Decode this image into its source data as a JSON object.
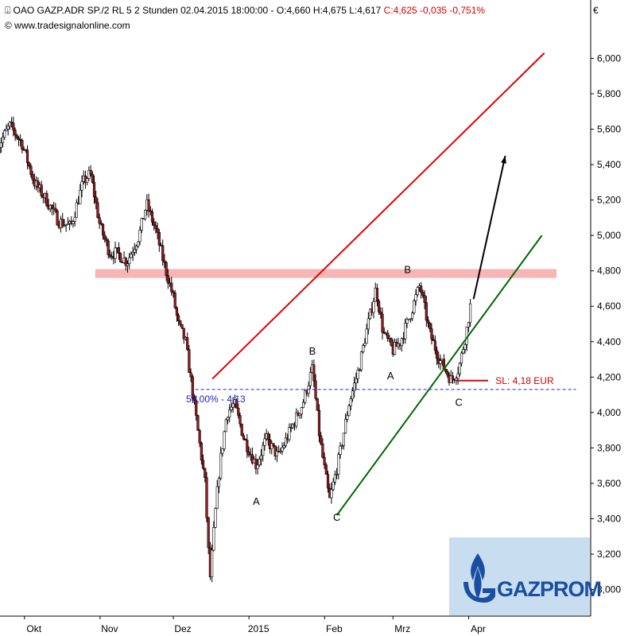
{
  "header": {
    "title": "OAO GAZP.ADR SP./2 RL 5 2 Stunden  02.04.2015 18:00:00 - O:4,660 H:4,675 L:4,617",
    "change": "C:4,625 -0,035 -0,751%",
    "copyright": "© www.tradesignalonline.com",
    "currency": "€"
  },
  "chart_data": {
    "type": "candlestick",
    "title": "OAO GAZP.ADR SP./2 RL 5 2 Stunden",
    "ylabel": "€",
    "ylim": [
      2.85,
      6.15
    ],
    "y_ticks": [
      "3,000",
      "3,200",
      "3,400",
      "3,600",
      "3,800",
      "4,000",
      "4,200",
      "4,400",
      "4,600",
      "4,800",
      "5,000",
      "5,200",
      "5,400",
      "5,600",
      "5,800",
      "6,000"
    ],
    "y_tick_values": [
      3.0,
      3.2,
      3.4,
      3.6,
      3.8,
      4.0,
      4.2,
      4.4,
      4.6,
      4.8,
      5.0,
      5.2,
      5.4,
      5.6,
      5.8,
      6.0
    ],
    "x_ticks": [
      "Okt",
      "Nov",
      "Dez",
      "2015",
      "Feb",
      "Mrz",
      "Apr"
    ],
    "x_tick_dates": [
      "2014-10-01",
      "2014-11-01",
      "2014-12-01",
      "2015-01-01",
      "2015-02-01",
      "2015-03-01",
      "2015-04-01"
    ],
    "last_bar": {
      "date": "2015-04-02 18:00",
      "open": 4.66,
      "high": 4.675,
      "low": 4.617,
      "close": 4.625,
      "change": -0.035,
      "change_pct": -0.751
    },
    "price_path": [
      [
        "2014-09-20",
        5.5
      ],
      [
        "2014-09-25",
        5.62
      ],
      [
        "2014-09-30",
        5.52
      ],
      [
        "2014-10-05",
        5.3
      ],
      [
        "2014-10-10",
        5.2
      ],
      [
        "2014-10-15",
        5.08
      ],
      [
        "2014-10-20",
        5.05
      ],
      [
        "2014-10-25",
        5.3
      ],
      [
        "2014-10-28",
        5.35
      ],
      [
        "2014-11-01",
        5.05
      ],
      [
        "2014-11-05",
        4.9
      ],
      [
        "2014-11-08",
        4.9
      ],
      [
        "2014-11-12",
        4.85
      ],
      [
        "2014-11-17",
        5.0
      ],
      [
        "2014-11-20",
        5.18
      ],
      [
        "2014-11-24",
        5.02
      ],
      [
        "2014-11-27",
        4.85
      ],
      [
        "2014-12-01",
        4.65
      ],
      [
        "2014-12-03",
        4.5
      ],
      [
        "2014-12-06",
        4.4
      ],
      [
        "2014-12-09",
        4.1
      ],
      [
        "2014-12-12",
        3.8
      ],
      [
        "2014-12-14",
        3.6
      ],
      [
        "2014-12-16",
        3.05
      ],
      [
        "2014-12-18",
        3.4
      ],
      [
        "2014-12-20",
        3.7
      ],
      [
        "2014-12-23",
        4.0
      ],
      [
        "2014-12-26",
        4.05
      ],
      [
        "2014-12-30",
        3.85
      ],
      [
        "2015-01-04",
        3.7
      ],
      [
        "2015-01-08",
        3.85
      ],
      [
        "2015-01-13",
        3.75
      ],
      [
        "2015-01-18",
        3.9
      ],
      [
        "2015-01-23",
        4.05
      ],
      [
        "2015-01-27",
        4.25
      ],
      [
        "2015-01-30",
        3.85
      ],
      [
        "2015-02-03",
        3.5
      ],
      [
        "2015-02-07",
        3.75
      ],
      [
        "2015-02-11",
        4.05
      ],
      [
        "2015-02-15",
        4.25
      ],
      [
        "2015-02-18",
        4.45
      ],
      [
        "2015-02-22",
        4.7
      ],
      [
        "2015-02-25",
        4.45
      ],
      [
        "2015-03-01",
        4.35
      ],
      [
        "2015-03-04",
        4.4
      ],
      [
        "2015-03-08",
        4.55
      ],
      [
        "2015-03-12",
        4.72
      ],
      [
        "2015-03-16",
        4.45
      ],
      [
        "2015-03-20",
        4.3
      ],
      [
        "2015-03-25",
        4.18
      ],
      [
        "2015-03-28",
        4.25
      ],
      [
        "2015-03-31",
        4.45
      ],
      [
        "2015-04-02",
        4.63
      ]
    ],
    "lines": [
      {
        "name": "upper-channel",
        "color": "#e00000",
        "from": [
          "2014-12-17",
          4.19
        ],
        "to": [
          "2015-05-02",
          6.03
        ]
      },
      {
        "name": "lower-channel",
        "color": "#006600",
        "from": [
          "2015-02-06",
          3.42
        ],
        "to": [
          "2015-05-01",
          5.0
        ]
      },
      {
        "name": "projection-arrow",
        "color": "#000000",
        "from": [
          "2015-04-03",
          4.64
        ],
        "to": [
          "2015-04-16",
          5.45
        ]
      },
      {
        "name": "stop-loss-line",
        "color": "#e00000",
        "from": [
          "2015-03-27",
          4.18
        ],
        "to": [
          "2015-04-09",
          4.18
        ]
      },
      {
        "name": "fib-50-line",
        "color": "#2222cc",
        "dashed": true,
        "from": [
          "2014-12-10",
          4.13
        ],
        "to": [
          "2015-05-15",
          4.13
        ]
      }
    ],
    "resistance_zone": {
      "color": "#f7b5b5",
      "y_low": 4.76,
      "y_high": 4.81,
      "from": "2014-10-30",
      "to": "2015-05-07"
    },
    "annotations": [
      {
        "text": "A",
        "date": "2015-01-04",
        "value": 3.55,
        "label_pos": "below"
      },
      {
        "text": "B",
        "date": "2015-01-27",
        "value": 4.3,
        "label_pos": "above"
      },
      {
        "text": "C",
        "date": "2015-02-06",
        "value": 3.46,
        "label_pos": "below"
      },
      {
        "text": "A",
        "date": "2015-02-28",
        "value": 4.26,
        "label_pos": "below"
      },
      {
        "text": "B",
        "date": "2015-03-07",
        "value": 4.76,
        "label_pos": "above"
      },
      {
        "text": "C",
        "date": "2015-03-28",
        "value": 4.11,
        "label_pos": "below"
      },
      {
        "text": "SL: 4,18 EUR",
        "date": "2015-04-12",
        "value": 4.18,
        "label_pos": "right",
        "color": "#cc0000"
      },
      {
        "text": "50,00% - 4,13",
        "date": "2014-12-27",
        "value": 4.13,
        "label_pos": "below",
        "color": "#2222cc"
      }
    ],
    "grid": false,
    "legend": "none"
  },
  "logo": {
    "text": "GAZPROM",
    "color": "#1a4fa0",
    "background": "#c9ddf0"
  }
}
